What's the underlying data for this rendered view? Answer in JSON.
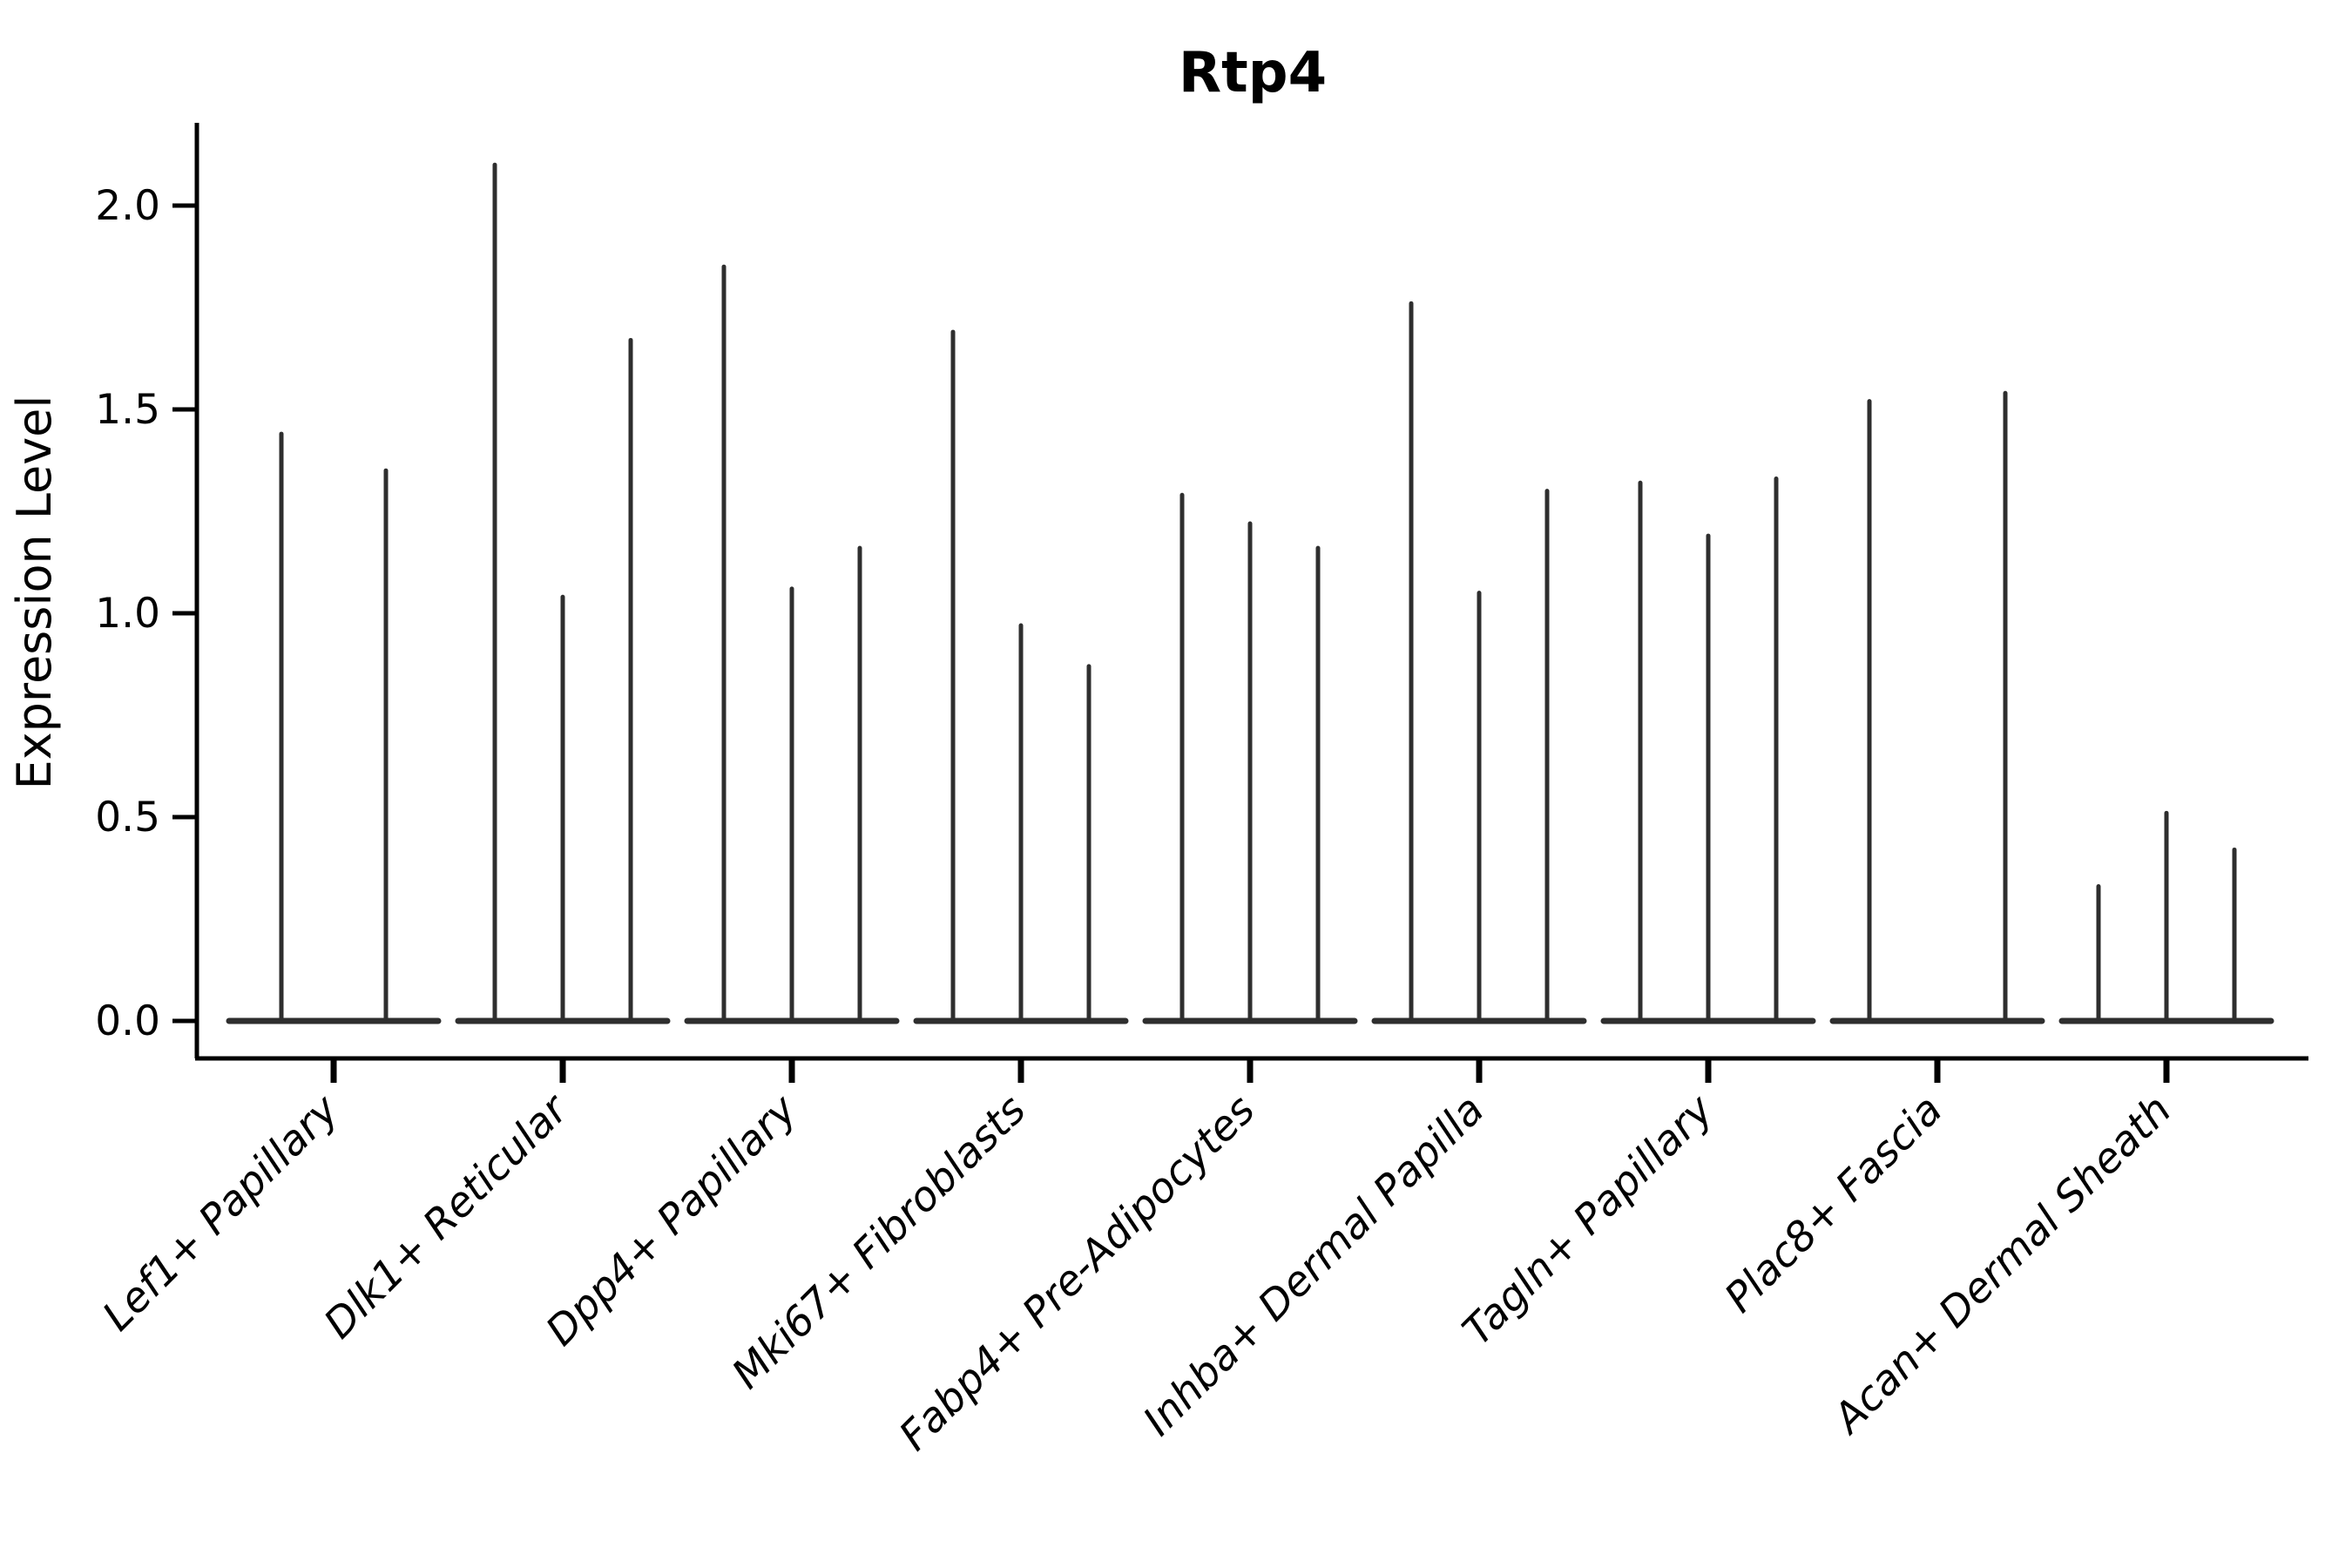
{
  "chart_data": {
    "type": "violin",
    "title": "Rtp4",
    "ylabel": "Expression Level",
    "xlabel": "",
    "grid": false,
    "legend": "none",
    "ylim": [
      0,
      2.2
    ],
    "yticks": [
      {
        "label": "0.0",
        "value": 0.0
      },
      {
        "label": "0.5",
        "value": 0.5
      },
      {
        "label": "1.0",
        "value": 1.0
      },
      {
        "label": "1.5",
        "value": 1.5
      },
      {
        "label": "2.0",
        "value": 2.0
      }
    ],
    "categories": [
      "Lef1+ Papillary",
      "Dlk1+ Reticular",
      "Dpp4+ Papillary",
      "Mki67+ Fibroblasts",
      "Fabp4+ Pre-Adipocytes",
      "Inhba+ Dermal Papilla",
      "Tagln+ Papillary",
      "Plac8+ Fascia",
      "Acan+ Dermal Sheath"
    ],
    "groups": [
      {
        "label": "Lef1+ Papillary",
        "violins": [
          {
            "offset": -60,
            "max": 1.44
          },
          {
            "offset": 60,
            "max": 1.35
          }
        ]
      },
      {
        "label": "Dlk1+ Reticular",
        "violins": [
          {
            "offset": -78,
            "max": 2.1
          },
          {
            "offset": 0,
            "max": 1.04
          },
          {
            "offset": 78,
            "max": 1.67
          }
        ]
      },
      {
        "label": "Dpp4+ Papillary",
        "violins": [
          {
            "offset": -78,
            "max": 1.85
          },
          {
            "offset": 0,
            "max": 1.06
          },
          {
            "offset": 78,
            "max": 1.16
          }
        ]
      },
      {
        "label": "Mki67+ Fibroblasts",
        "violins": [
          {
            "offset": -78,
            "max": 1.69
          },
          {
            "offset": 0,
            "max": 0.97
          },
          {
            "offset": 78,
            "max": 0.87
          }
        ]
      },
      {
        "label": "Fabp4+ Pre-Adipocytes",
        "violins": [
          {
            "offset": -78,
            "max": 1.29
          },
          {
            "offset": 0,
            "max": 1.22
          },
          {
            "offset": 78,
            "max": 1.16
          }
        ]
      },
      {
        "label": "Inhba+ Dermal Papilla",
        "violins": [
          {
            "offset": -78,
            "max": 1.76
          },
          {
            "offset": 0,
            "max": 1.05
          },
          {
            "offset": 78,
            "max": 1.3
          }
        ]
      },
      {
        "label": "Tagln+ Papillary",
        "violins": [
          {
            "offset": -78,
            "max": 1.32
          },
          {
            "offset": 0,
            "max": 1.19
          },
          {
            "offset": 78,
            "max": 1.33
          }
        ]
      },
      {
        "label": "Plac8+ Fascia",
        "violins": [
          {
            "offset": -78,
            "max": 1.52
          },
          {
            "offset": 78,
            "max": 1.54
          }
        ]
      },
      {
        "label": "Acan+ Dermal Sheath",
        "violins": [
          {
            "offset": -78,
            "max": 0.33
          },
          {
            "offset": 0,
            "max": 0.51
          },
          {
            "offset": 78,
            "max": 0.42
          }
        ]
      }
    ],
    "colors": {
      "violin": "#2e2e2e",
      "axis": "#000000",
      "background": "#ffffff"
    }
  }
}
